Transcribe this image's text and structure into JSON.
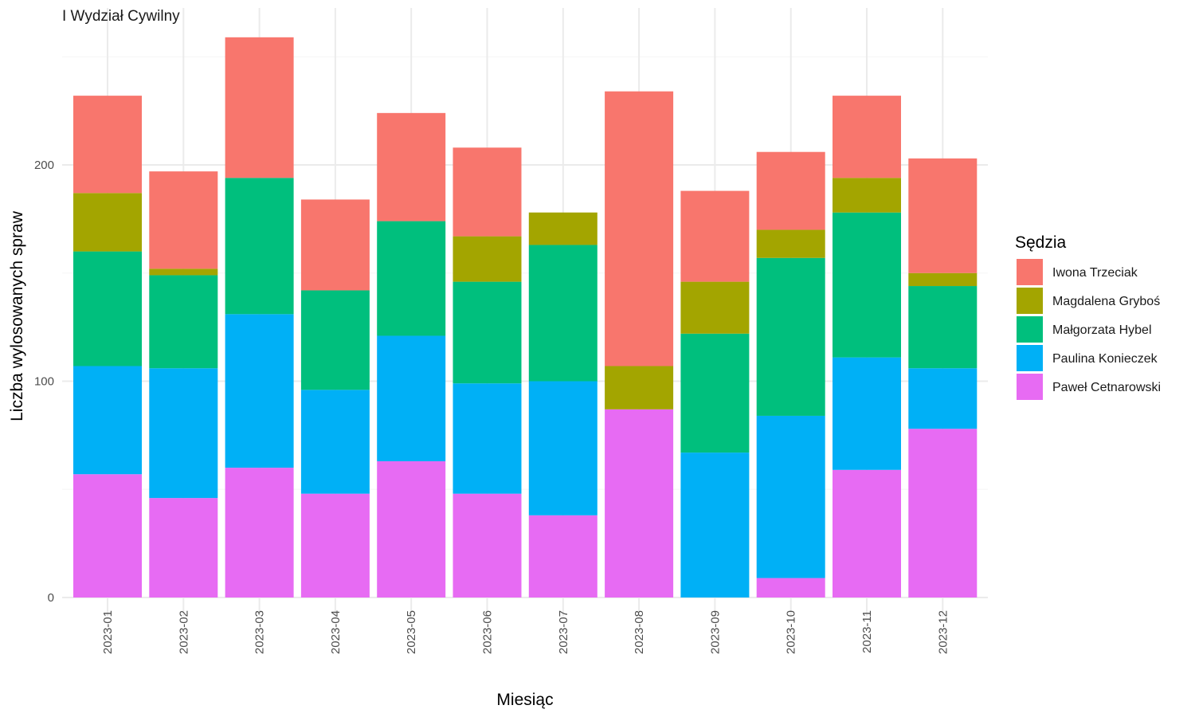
{
  "chart_data": {
    "type": "bar",
    "stacked": true,
    "facet_title": "I Wydział Cywilny",
    "xlabel": "Miesiąc",
    "ylabel": "Liczba wylosowanych spraw",
    "ylim": [
      0,
      262
    ],
    "yticks": [
      0,
      100,
      200
    ],
    "legend_title": "Sędzia",
    "legend_position": "right",
    "grid": true,
    "categories": [
      "2023-01",
      "2023-02",
      "2023-03",
      "2023-04",
      "2023-05",
      "2023-06",
      "2023-07",
      "2023-08",
      "2023-09",
      "2023-10",
      "2023-11",
      "2023-12"
    ],
    "series": [
      {
        "name": "Paweł Cetnarowski",
        "color": "#E76BF3",
        "values": [
          57,
          46,
          60,
          48,
          63,
          48,
          38,
          87,
          0,
          9,
          59,
          78
        ]
      },
      {
        "name": "Paulina Konieczek",
        "color": "#00B0F6",
        "values": [
          50,
          60,
          71,
          48,
          58,
          51,
          62,
          0,
          67,
          75,
          52,
          28
        ]
      },
      {
        "name": "Małgorzata Hybel",
        "color": "#00BF7D",
        "values": [
          53,
          43,
          63,
          46,
          53,
          47,
          63,
          0,
          55,
          73,
          67,
          38
        ]
      },
      {
        "name": "Magdalena Gryboś",
        "color": "#A3A500",
        "values": [
          27,
          3,
          0,
          0,
          0,
          21,
          15,
          20,
          24,
          13,
          16,
          6
        ]
      },
      {
        "name": "Iwona Trzeciak",
        "color": "#F8766D",
        "values": [
          45,
          45,
          65,
          42,
          50,
          41,
          0,
          127,
          42,
          36,
          38,
          53
        ]
      }
    ],
    "legend_order": [
      "Iwona Trzeciak",
      "Magdalena Gryboś",
      "Małgorzata Hybel",
      "Paulina Konieczek",
      "Paweł Cetnarowski"
    ]
  }
}
